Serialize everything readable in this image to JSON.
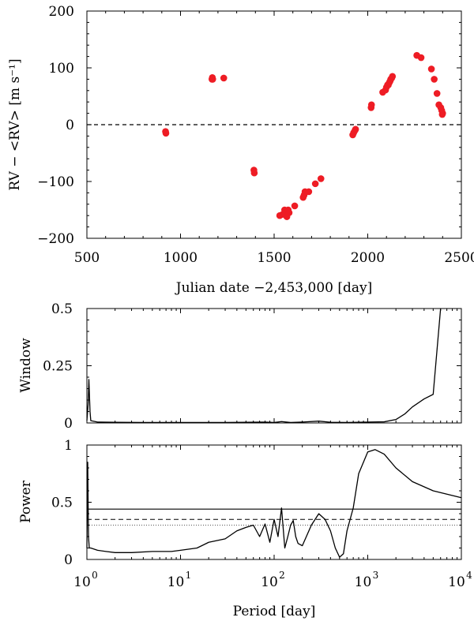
{
  "chart_data": [
    {
      "type": "scatter",
      "name": "rv",
      "title": "",
      "xlabel": "Julian date −2,453,000 [day]",
      "ylabel": "RV − <RV> [m s⁻¹]",
      "xlim": [
        500,
        2500
      ],
      "ylim": [
        -200,
        200
      ],
      "x_ticks": [
        500,
        1000,
        1500,
        2000,
        2500
      ],
      "x_tick_labels": [
        "500",
        "1000",
        "1500",
        "2000",
        "2500"
      ],
      "y_ticks": [
        200,
        100,
        0,
        -100,
        -200
      ],
      "y_tick_labels": [
        "200",
        "100",
        "0",
        "−100",
        "−200"
      ],
      "marker_color": "#ee1c24",
      "reference_line": {
        "y": 0,
        "style": "dashed"
      },
      "series": [
        {
          "name": "RV",
          "points": [
            [
              920,
              -12
            ],
            [
              922,
              -15
            ],
            [
              1168,
              80
            ],
            [
              1170,
              83
            ],
            [
              1172,
              80
            ],
            [
              1231,
              82
            ],
            [
              1392,
              -80
            ],
            [
              1394,
              -85
            ],
            [
              1530,
              -160
            ],
            [
              1545,
              -158
            ],
            [
              1556,
              -150
            ],
            [
              1560,
              -157
            ],
            [
              1568,
              -162
            ],
            [
              1575,
              -150
            ],
            [
              1580,
              -155
            ],
            [
              1610,
              -143
            ],
            [
              1655,
              -128
            ],
            [
              1660,
              -124
            ],
            [
              1665,
              -118
            ],
            [
              1685,
              -118
            ],
            [
              1720,
              -104
            ],
            [
              1750,
              -95
            ],
            [
              1920,
              -18
            ],
            [
              1925,
              -14
            ],
            [
              1932,
              -10
            ],
            [
              1935,
              -8
            ],
            [
              2018,
              30
            ],
            [
              2020,
              35
            ],
            [
              2080,
              57
            ],
            [
              2095,
              61
            ],
            [
              2100,
              66
            ],
            [
              2106,
              70
            ],
            [
              2110,
              70
            ],
            [
              2115,
              74
            ],
            [
              2120,
              77
            ],
            [
              2123,
              80
            ],
            [
              2128,
              82
            ],
            [
              2132,
              85
            ],
            [
              2262,
              122
            ],
            [
              2285,
              118
            ],
            [
              2340,
              98
            ],
            [
              2355,
              80
            ],
            [
              2370,
              55
            ],
            [
              2380,
              35
            ],
            [
              2390,
              30
            ],
            [
              2395,
              25
            ],
            [
              2398,
              18
            ],
            [
              2400,
              20
            ]
          ]
        }
      ]
    },
    {
      "type": "line",
      "name": "window",
      "title": "",
      "xlabel": "",
      "ylabel": "Window",
      "xscale": "log",
      "xlim": [
        1,
        10000
      ],
      "ylim": [
        0,
        0.5
      ],
      "y_ticks": [
        0,
        0.25,
        0.5
      ],
      "y_tick_labels": [
        "0",
        "0.25",
        "0.5"
      ],
      "series": [
        {
          "name": "window function",
          "x": [
            1,
            1.03,
            1.05,
            1.08,
            1.1,
            1.3,
            2,
            4,
            10,
            30,
            80,
            100,
            120,
            150,
            200,
            300,
            400,
            600,
            1000,
            1500,
            2000,
            2500,
            3000,
            4000,
            5000,
            6000
          ],
          "y": [
            0.01,
            0.08,
            0.19,
            0.05,
            0.01,
            0.004,
            0.003,
            0.002,
            0.002,
            0.002,
            0.004,
            0.002,
            0.006,
            0.002,
            0.004,
            0.008,
            0.003,
            0.002,
            0.004,
            0.005,
            0.015,
            0.04,
            0.07,
            0.105,
            0.125,
            0.5
          ]
        }
      ]
    },
    {
      "type": "line",
      "name": "power",
      "title": "",
      "xlabel": "Period [day]",
      "ylabel": "Power",
      "xscale": "log",
      "xlim": [
        1,
        10000
      ],
      "ylim": [
        0,
        1
      ],
      "x_ticks": [
        1,
        10,
        100,
        1000,
        10000
      ],
      "x_tick_labels_base": [
        "10",
        "10",
        "10",
        "10",
        "10"
      ],
      "x_tick_labels_exp": [
        "0",
        "1",
        "2",
        "3",
        "4"
      ],
      "y_ticks": [
        0,
        0.5,
        1
      ],
      "y_tick_labels": [
        "0",
        "0.5",
        "1"
      ],
      "levels": [
        {
          "name": "solid threshold",
          "y": 0.44,
          "style": "solid"
        },
        {
          "name": "dashed threshold",
          "y": 0.35,
          "style": "dashed"
        },
        {
          "name": "dotted threshold",
          "y": 0.3,
          "style": "dotted"
        }
      ],
      "series": [
        {
          "name": "periodogram",
          "x": [
            1,
            1.02,
            1.04,
            1.06,
            1.1,
            1.3,
            1.6,
            2,
            3,
            5,
            8,
            10,
            15,
            20,
            30,
            40,
            50,
            60,
            70,
            80,
            90,
            100,
            110,
            120,
            130,
            140,
            150,
            160,
            170,
            180,
            200,
            250,
            300,
            350,
            400,
            450,
            500,
            550,
            600,
            700,
            800,
            1000,
            1200,
            1500,
            2000,
            3000,
            5000,
            10000
          ],
          "y": [
            0.1,
            0.85,
            0.2,
            0.1,
            0.1,
            0.08,
            0.07,
            0.06,
            0.06,
            0.07,
            0.07,
            0.08,
            0.1,
            0.15,
            0.18,
            0.25,
            0.28,
            0.3,
            0.2,
            0.31,
            0.15,
            0.35,
            0.2,
            0.45,
            0.1,
            0.2,
            0.3,
            0.34,
            0.2,
            0.14,
            0.12,
            0.3,
            0.4,
            0.35,
            0.25,
            0.1,
            0.02,
            0.05,
            0.25,
            0.45,
            0.75,
            0.94,
            0.96,
            0.92,
            0.8,
            0.68,
            0.6,
            0.54
          ]
        }
      ]
    }
  ]
}
